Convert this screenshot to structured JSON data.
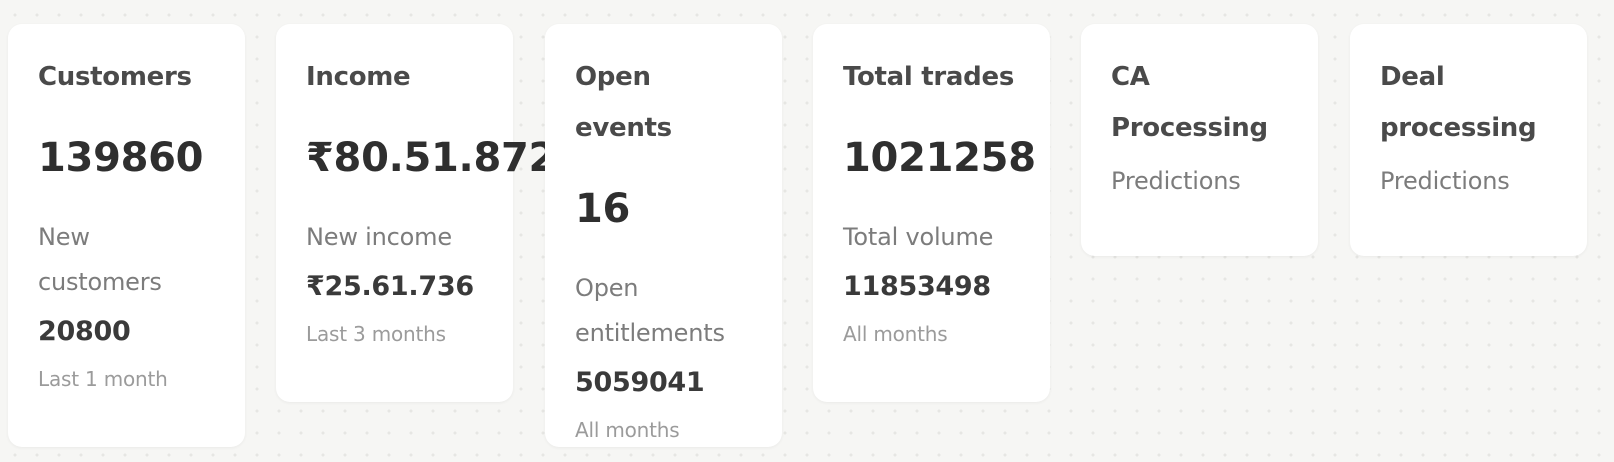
{
  "cards": {
    "customers": {
      "title": "Customers",
      "value": "139860",
      "sub_label": "New customers",
      "sub_value": "20800",
      "period": "Last 1 month"
    },
    "income": {
      "title": "Income",
      "value": "₹80.51.872",
      "sub_label": "New income",
      "sub_value": "₹25.61.736",
      "period": "Last 3 months"
    },
    "open_events": {
      "title": "Open events",
      "value": "16",
      "sub_label": "Open entitlements",
      "sub_value": "5059041",
      "period": "All months"
    },
    "total_trades": {
      "title": "Total trades",
      "value": "1021258",
      "sub_label": "Total volume",
      "sub_value": "11853498",
      "period": "All months"
    },
    "ca_processing": {
      "title": "CA Processing",
      "link": "Predictions"
    },
    "deal_processing": {
      "title": "Deal processing",
      "link": "Predictions"
    }
  }
}
